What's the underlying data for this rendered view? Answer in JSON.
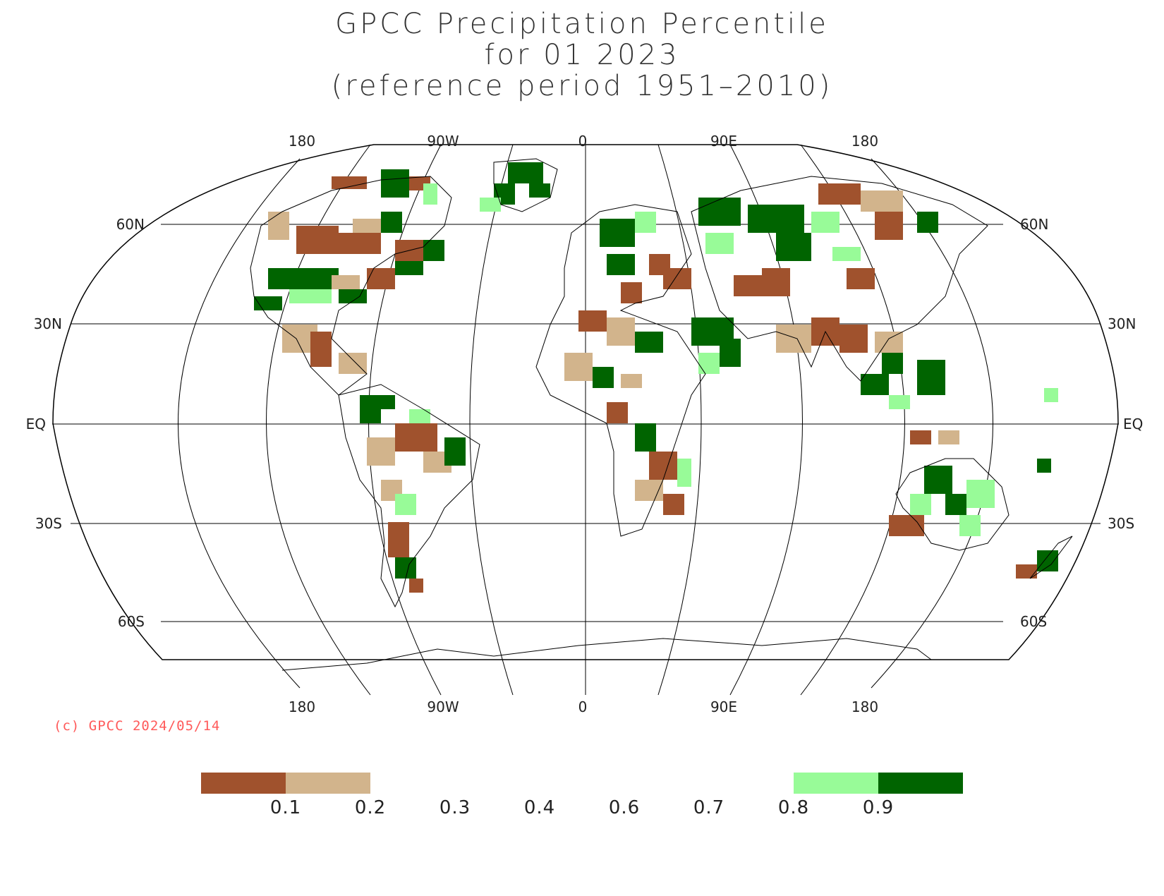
{
  "title": {
    "line1": "GPCC Precipitation Percentile",
    "line2": "for 01 2023",
    "line3": "(reference period 1951–2010)"
  },
  "longitude_labels": [
    "180",
    "90W",
    "0",
    "90E",
    "180"
  ],
  "latitude_labels": [
    "60N",
    "30N",
    "EQ",
    "30S",
    "60S"
  ],
  "copyright": "(c) GPCC 2024/05/14",
  "legend": {
    "ticks": [
      "0.1",
      "0.2",
      "0.3",
      "0.4",
      "0.6",
      "0.7",
      "0.8",
      "0.9"
    ],
    "classes": [
      {
        "range": "<0.1",
        "color": "#a0522d"
      },
      {
        "range": "0.1-0.2",
        "color": "#d2b48c"
      },
      {
        "range": "0.8-0.9",
        "color": "#98fb98"
      },
      {
        "range": ">0.9",
        "color": "#006400"
      }
    ]
  },
  "colors": {
    "very_dry": "#a0522d",
    "dry": "#d2b48c",
    "wet": "#98fb98",
    "very_wet": "#006400"
  }
}
